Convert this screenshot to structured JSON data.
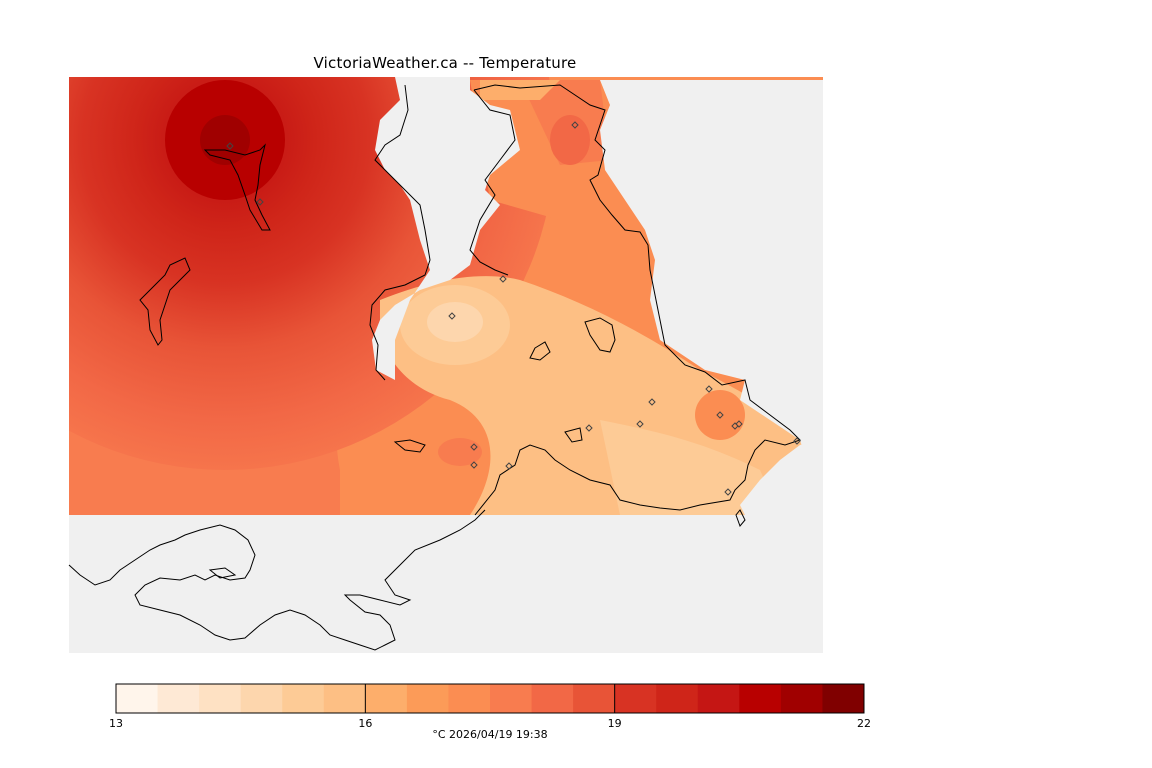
{
  "title": "VictoriaWeather.ca -- Temperature",
  "colorbar": {
    "min": 13,
    "max": 22,
    "ticks": [
      "13",
      "16",
      "19",
      "22"
    ],
    "colors": [
      "#fff5eb",
      "#fee9d5",
      "#fee1c3",
      "#fdd6ad",
      "#fdcb96",
      "#fdbf84",
      "#fdae6b",
      "#fc9b58",
      "#fb8d52",
      "#f87c4f",
      "#f26846",
      "#e85437",
      "#d83323",
      "#cf2519",
      "#c51614",
      "#b80000",
      "#a00000",
      "#800000"
    ]
  },
  "units_label": "°C  2026/04/19 19:38",
  "legend": {
    "station_symbol": "diamond-icon"
  }
}
